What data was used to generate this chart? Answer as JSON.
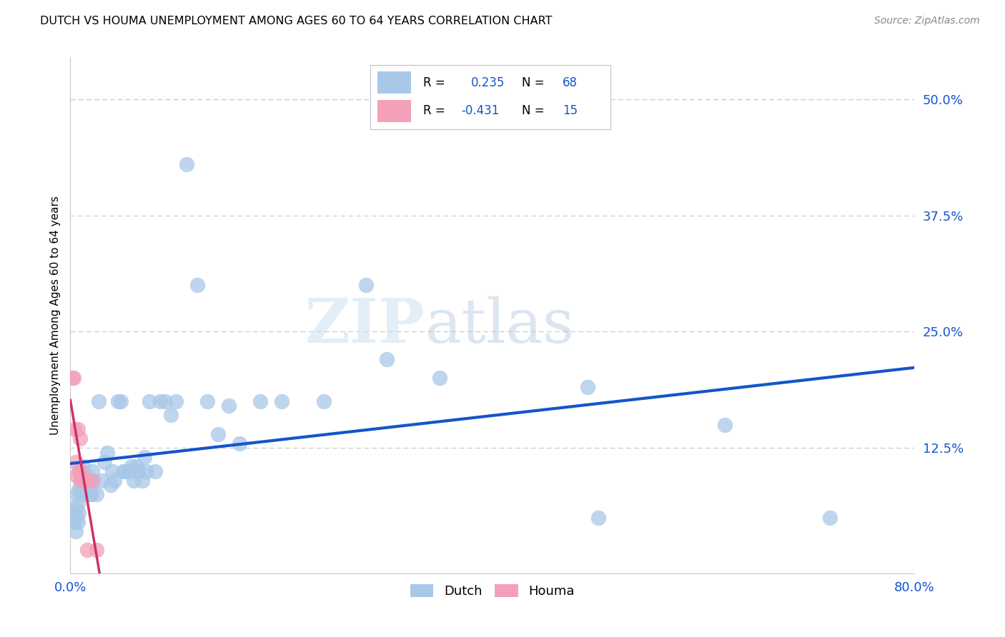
{
  "title": "DUTCH VS HOUMA UNEMPLOYMENT AMONG AGES 60 TO 64 YEARS CORRELATION CHART",
  "source": "Source: ZipAtlas.com",
  "ylabel": "Unemployment Among Ages 60 to 64 years",
  "xlim": [
    0.0,
    0.8
  ],
  "ylim": [
    -0.01,
    0.545
  ],
  "yticks": [
    0.0,
    0.125,
    0.25,
    0.375,
    0.5
  ],
  "ytick_labels": [
    "",
    "12.5%",
    "25.0%",
    "37.5%",
    "50.0%"
  ],
  "xtick_labels": [
    "0.0%",
    "80.0%"
  ],
  "dutch_color": "#a8c8e8",
  "houma_color": "#f4a0b8",
  "line_blue": "#1555cc",
  "line_pink": "#cc3366",
  "R_dutch": 0.235,
  "N_dutch": 68,
  "R_houma": -0.431,
  "N_houma": 15,
  "dutch_x": [
    0.003,
    0.004,
    0.005,
    0.005,
    0.006,
    0.006,
    0.007,
    0.007,
    0.008,
    0.008,
    0.009,
    0.01,
    0.01,
    0.011,
    0.011,
    0.012,
    0.013,
    0.014,
    0.015,
    0.016,
    0.017,
    0.018,
    0.019,
    0.02,
    0.021,
    0.022,
    0.025,
    0.027,
    0.03,
    0.032,
    0.035,
    0.038,
    0.04,
    0.042,
    0.045,
    0.048,
    0.05,
    0.052,
    0.055,
    0.058,
    0.06,
    0.063,
    0.065,
    0.068,
    0.07,
    0.072,
    0.075,
    0.08,
    0.085,
    0.09,
    0.095,
    0.1,
    0.11,
    0.12,
    0.13,
    0.14,
    0.15,
    0.16,
    0.18,
    0.2,
    0.24,
    0.28,
    0.3,
    0.35,
    0.49,
    0.5,
    0.62,
    0.72
  ],
  "dutch_y": [
    0.055,
    0.045,
    0.06,
    0.035,
    0.075,
    0.05,
    0.045,
    0.065,
    0.055,
    0.08,
    0.09,
    0.1,
    0.085,
    0.075,
    0.1,
    0.105,
    0.095,
    0.09,
    0.08,
    0.095,
    0.09,
    0.075,
    0.085,
    0.075,
    0.1,
    0.09,
    0.075,
    0.175,
    0.09,
    0.11,
    0.12,
    0.085,
    0.1,
    0.09,
    0.175,
    0.175,
    0.1,
    0.1,
    0.1,
    0.105,
    0.09,
    0.105,
    0.1,
    0.09,
    0.115,
    0.1,
    0.175,
    0.1,
    0.175,
    0.175,
    0.16,
    0.175,
    0.43,
    0.3,
    0.175,
    0.14,
    0.17,
    0.13,
    0.175,
    0.175,
    0.175,
    0.3,
    0.22,
    0.2,
    0.19,
    0.05,
    0.15,
    0.05
  ],
  "houma_x": [
    0.002,
    0.003,
    0.004,
    0.005,
    0.006,
    0.007,
    0.008,
    0.009,
    0.01,
    0.011,
    0.012,
    0.014,
    0.016,
    0.02,
    0.025
  ],
  "houma_y": [
    0.2,
    0.2,
    0.145,
    0.11,
    0.095,
    0.145,
    0.1,
    0.135,
    0.1,
    0.09,
    0.09,
    0.09,
    0.015,
    0.09,
    0.015
  ],
  "background_color": "#ffffff",
  "grid_color": "#c8c8c8",
  "legend_box_color": "#f0f0f8",
  "legend_border_color": "#c0c0d0"
}
